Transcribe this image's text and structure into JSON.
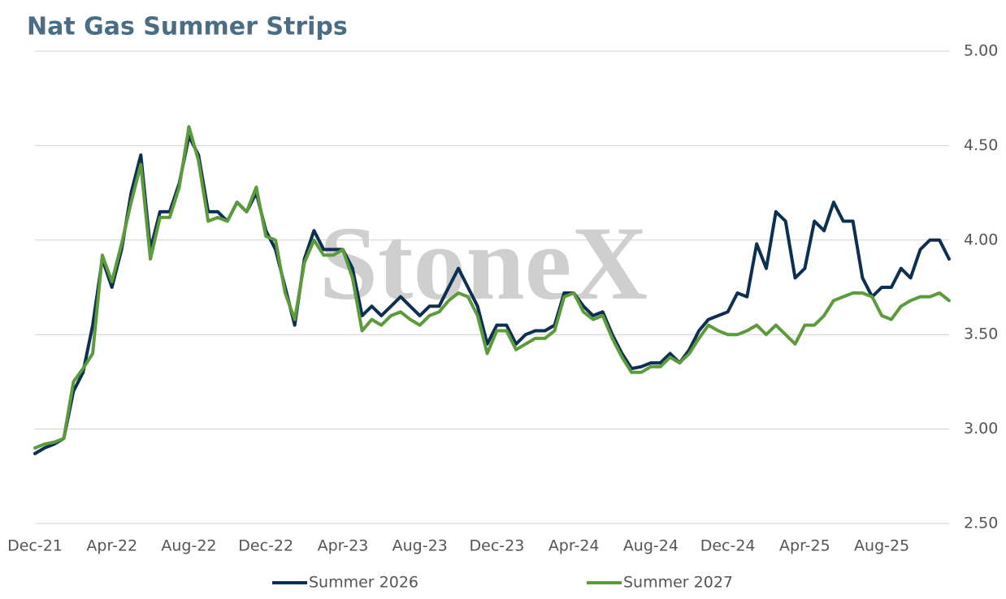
{
  "chart_data": {
    "type": "line",
    "title": "Nat Gas Summer Strips",
    "watermark": "StoneX",
    "categories": [
      "Dec-21",
      null,
      null,
      null,
      null,
      null,
      null,
      null,
      "Apr-22",
      null,
      null,
      null,
      null,
      null,
      null,
      null,
      "Aug-22",
      null,
      null,
      null,
      null,
      null,
      null,
      null,
      "Dec-22",
      null,
      null,
      null,
      null,
      null,
      null,
      null,
      "Apr-23",
      null,
      null,
      null,
      null,
      null,
      null,
      null,
      "Aug-23",
      null,
      null,
      null,
      null,
      null,
      null,
      null,
      "Dec-23",
      null,
      null,
      null,
      null,
      null,
      null,
      null,
      "Apr-24",
      null,
      null,
      null,
      null,
      null,
      null,
      null,
      "Aug-24",
      null,
      null,
      null,
      null,
      null,
      null,
      null,
      "Dec-24",
      null,
      null,
      null,
      null,
      null,
      null,
      null,
      "Apr-25",
      null,
      null,
      null,
      null,
      null,
      null,
      null,
      "Aug-25",
      null,
      null,
      null,
      null,
      null,
      null,
      null
    ],
    "series": [
      {
        "name": "Summer 2026",
        "color": "#0d2f52",
        "values": [
          2.87,
          2.9,
          2.92,
          2.95,
          3.2,
          3.3,
          3.55,
          3.9,
          3.75,
          3.95,
          4.25,
          4.45,
          3.95,
          4.15,
          4.15,
          4.3,
          4.55,
          4.45,
          4.15,
          4.15,
          4.1,
          4.2,
          4.15,
          4.25,
          4.05,
          3.95,
          3.75,
          3.55,
          3.9,
          4.05,
          3.95,
          3.95,
          3.95,
          3.85,
          3.6,
          3.65,
          3.6,
          3.65,
          3.7,
          3.65,
          3.6,
          3.65,
          3.65,
          3.75,
          3.85,
          3.75,
          3.65,
          3.45,
          3.55,
          3.55,
          3.45,
          3.5,
          3.52,
          3.52,
          3.55,
          3.72,
          3.72,
          3.65,
          3.6,
          3.62,
          3.5,
          3.4,
          3.32,
          3.33,
          3.35,
          3.35,
          3.4,
          3.35,
          3.42,
          3.52,
          3.58,
          3.6,
          3.62,
          3.72,
          3.7,
          3.98,
          3.85,
          4.15,
          4.1,
          3.8,
          3.85,
          4.1,
          4.05,
          4.2,
          4.1,
          4.1,
          3.8,
          3.7,
          3.75,
          3.75,
          3.85,
          3.8,
          3.95,
          4.0,
          4.0,
          3.9
        ]
      },
      {
        "name": "Summer 2027",
        "color": "#5b9b3c",
        "values": [
          2.9,
          2.92,
          2.93,
          2.95,
          3.25,
          3.32,
          3.4,
          3.92,
          3.78,
          3.98,
          4.2,
          4.4,
          3.9,
          4.12,
          4.12,
          4.28,
          4.6,
          4.42,
          4.1,
          4.12,
          4.1,
          4.2,
          4.15,
          4.28,
          4.02,
          4.0,
          3.72,
          3.58,
          3.88,
          4.0,
          3.92,
          3.92,
          3.95,
          3.8,
          3.52,
          3.58,
          3.55,
          3.6,
          3.62,
          3.58,
          3.55,
          3.6,
          3.62,
          3.68,
          3.72,
          3.7,
          3.6,
          3.4,
          3.52,
          3.52,
          3.42,
          3.45,
          3.48,
          3.48,
          3.52,
          3.7,
          3.72,
          3.62,
          3.58,
          3.6,
          3.48,
          3.38,
          3.3,
          3.3,
          3.33,
          3.33,
          3.38,
          3.35,
          3.4,
          3.48,
          3.55,
          3.52,
          3.5,
          3.5,
          3.52,
          3.55,
          3.5,
          3.55,
          3.5,
          3.45,
          3.55,
          3.55,
          3.6,
          3.68,
          3.7,
          3.72,
          3.72,
          3.7,
          3.6,
          3.58,
          3.65,
          3.68,
          3.7,
          3.7,
          3.72,
          3.68
        ]
      }
    ],
    "ylim": [
      2.5,
      5.0
    ],
    "yticks": [
      {
        "value": 2.5,
        "label": "2.50"
      },
      {
        "value": 3.0,
        "label": "3.00"
      },
      {
        "value": 3.5,
        "label": "3.50"
      },
      {
        "value": 4.0,
        "label": "4.00"
      },
      {
        "value": 4.5,
        "label": "4.50"
      },
      {
        "value": 5.0,
        "label": "5.00"
      }
    ],
    "grid": true,
    "legend": "bottom"
  }
}
